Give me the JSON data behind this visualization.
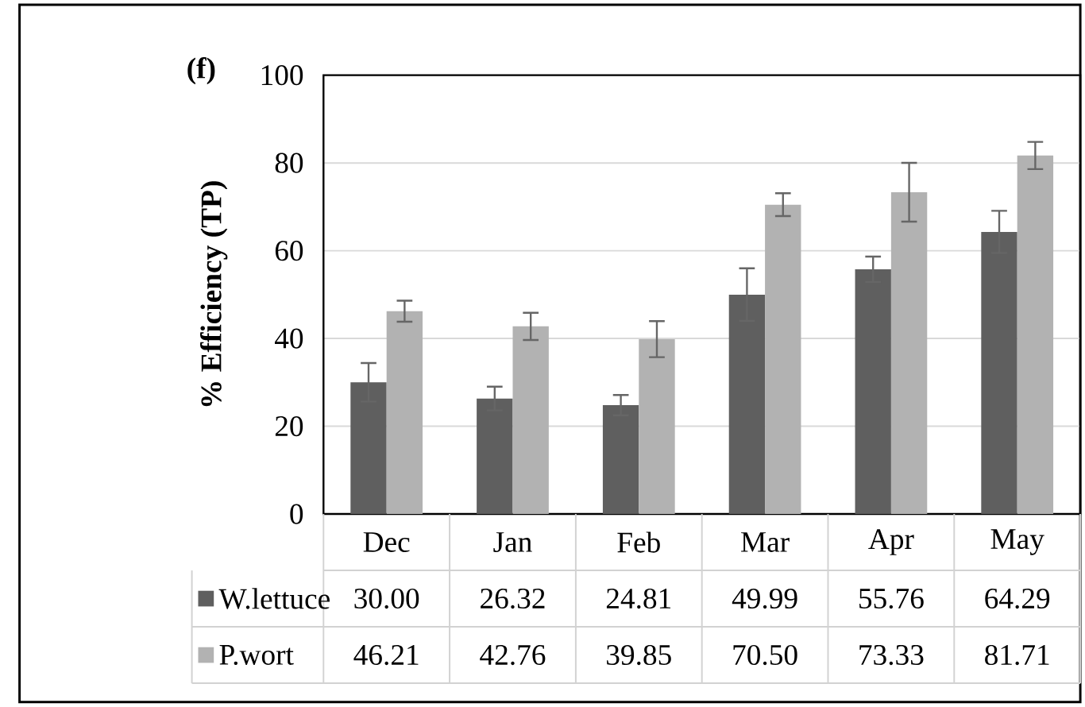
{
  "chart_data": {
    "type": "bar",
    "title": "(f)",
    "ylabel": "% Efficiency (TP)",
    "categories": [
      "Dec",
      "Jan",
      "Feb",
      "Mar",
      "Apr",
      "May"
    ],
    "series": [
      {
        "name": "W.lettuce",
        "color": "#5f5f5f",
        "values": [
          30.0,
          26.32,
          24.81,
          49.99,
          55.76,
          64.29
        ],
        "value_labels": [
          "30.00",
          "26.32",
          "24.81",
          "49.99",
          "55.76",
          "64.29"
        ],
        "errors": [
          4.4,
          2.7,
          2.3,
          6.0,
          2.9,
          4.8
        ]
      },
      {
        "name": "P.wort",
        "color": "#b2b2b2",
        "values": [
          46.21,
          42.76,
          39.85,
          70.5,
          73.33,
          81.71
        ],
        "value_labels": [
          "46.21",
          "42.76",
          "39.85",
          "70.50",
          "73.33",
          "81.71"
        ],
        "errors": [
          2.4,
          3.1,
          4.1,
          2.6,
          6.7,
          3.1
        ]
      }
    ],
    "ylim": [
      0,
      100
    ],
    "yticks": [
      0,
      20,
      40,
      60,
      80,
      100
    ],
    "grid": "y",
    "legend": "bottom"
  }
}
